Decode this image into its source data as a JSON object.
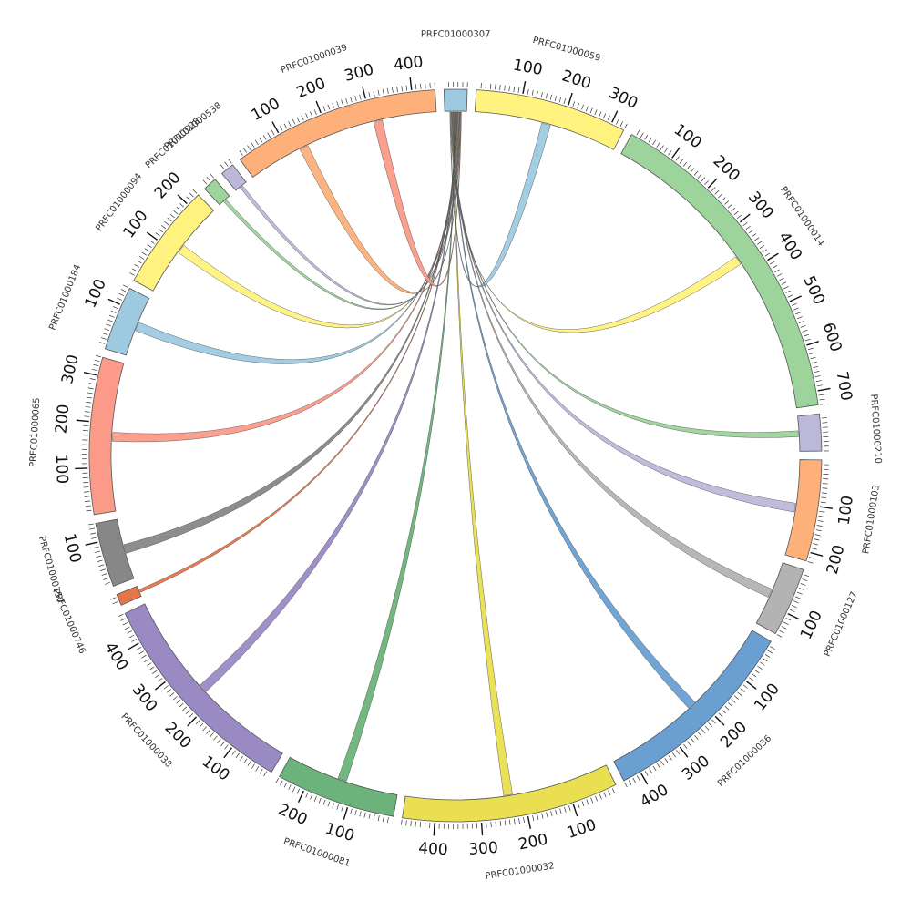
{
  "chart_data": {
    "type": "chord",
    "hub": "PRFC01000307",
    "segments": [
      {
        "name": "PRFC01000307",
        "length": 50,
        "color": "#9ecae1",
        "ticks": []
      },
      {
        "name": "PRFC01000059",
        "length": 330,
        "color": "#fff27f",
        "ticks": [
          "100",
          "200",
          "300"
        ]
      },
      {
        "name": "PRFC01000014",
        "length": 730,
        "color": "#9dd49c",
        "ticks": [
          "100",
          "200",
          "300",
          "400",
          "500",
          "600",
          "700"
        ]
      },
      {
        "name": "PRFC01000210",
        "length": 80,
        "color": "#bcb8da",
        "ticks": []
      },
      {
        "name": "PRFC01000103",
        "length": 220,
        "color": "#fdb07a",
        "ticks": [
          "100",
          "200"
        ]
      },
      {
        "name": "PRFC01000127",
        "length": 150,
        "color": "#b3b3b3",
        "ticks": [
          "100"
        ]
      },
      {
        "name": "PRFC01000036",
        "length": 440,
        "color": "#6a9fd2",
        "ticks": [
          "100",
          "200",
          "300",
          "400"
        ]
      },
      {
        "name": "PRFC01000032",
        "length": 470,
        "color": "#e9df50",
        "ticks": [
          "100",
          "200",
          "300",
          "400"
        ]
      },
      {
        "name": "PRFC01000081",
        "length": 260,
        "color": "#6bb37a",
        "ticks": [
          "100",
          "200"
        ]
      },
      {
        "name": "PRFC01000038",
        "length": 470,
        "color": "#9a8ac4",
        "ticks": [
          "100",
          "200",
          "300",
          "400"
        ]
      },
      {
        "name": "PRFC01000746",
        "length": 25,
        "color": "#e7754a",
        "ticks": []
      },
      {
        "name": "PRFC01000157",
        "length": 140,
        "color": "#878787",
        "ticks": [
          "100"
        ]
      },
      {
        "name": "PRFC01000065",
        "length": 340,
        "color": "#fb9a88",
        "ticks": [
          "100",
          "200",
          "300"
        ]
      },
      {
        "name": "PRFC01000184",
        "length": 140,
        "color": "#9ecae1",
        "ticks": [
          "100"
        ]
      },
      {
        "name": "PRFC01000094",
        "length": 230,
        "color": "#fff27f",
        "ticks": [
          "100",
          "200"
        ]
      },
      {
        "name": "PRFC01000528",
        "length": 30,
        "color": "#9dd49c",
        "ticks": []
      },
      {
        "name": "PRFC01000538",
        "length": 30,
        "color": "#bcb8da",
        "ticks": []
      },
      {
        "name": "PRFC01000039",
        "length": 450,
        "color": "#fdb07a",
        "ticks": [
          "100",
          "200",
          "300",
          "400"
        ]
      }
    ],
    "links": [
      {
        "source": "PRFC01000307",
        "target": "PRFC01000059",
        "color": "#9ecae1"
      },
      {
        "source": "PRFC01000307",
        "target": "PRFC01000014",
        "color": "#fff27f"
      },
      {
        "source": "PRFC01000307",
        "target": "PRFC01000210",
        "color": "#9dd49c"
      },
      {
        "source": "PRFC01000307",
        "target": "PRFC01000103",
        "color": "#bcb8da"
      },
      {
        "source": "PRFC01000307",
        "target": "PRFC01000127",
        "color": "#b3b3b3"
      },
      {
        "source": "PRFC01000307",
        "target": "PRFC01000036",
        "color": "#6a9fd2"
      },
      {
        "source": "PRFC01000307",
        "target": "PRFC01000032",
        "color": "#e9df50"
      },
      {
        "source": "PRFC01000307",
        "target": "PRFC01000081",
        "color": "#6bb37a"
      },
      {
        "source": "PRFC01000307",
        "target": "PRFC01000038",
        "color": "#9a8ac4"
      },
      {
        "source": "PRFC01000307",
        "target": "PRFC01000746",
        "color": "#e7754a"
      },
      {
        "source": "PRFC01000307",
        "target": "PRFC01000157",
        "color": "#878787"
      },
      {
        "source": "PRFC01000307",
        "target": "PRFC01000065",
        "color": "#fb9a88"
      },
      {
        "source": "PRFC01000307",
        "target": "PRFC01000184",
        "color": "#9ecae1"
      },
      {
        "source": "PRFC01000307",
        "target": "PRFC01000094",
        "color": "#fff27f"
      },
      {
        "source": "PRFC01000307",
        "target": "PRFC01000528",
        "color": "#9dd49c"
      },
      {
        "source": "PRFC01000307",
        "target": "PRFC01000538",
        "color": "#bcb8da"
      },
      {
        "source": "PRFC01000307",
        "target": "PRFC01000039",
        "color": "#fdb07a"
      },
      {
        "source": "PRFC01000307",
        "target": "PRFC01000039",
        "color": "#fb9a88"
      }
    ]
  }
}
